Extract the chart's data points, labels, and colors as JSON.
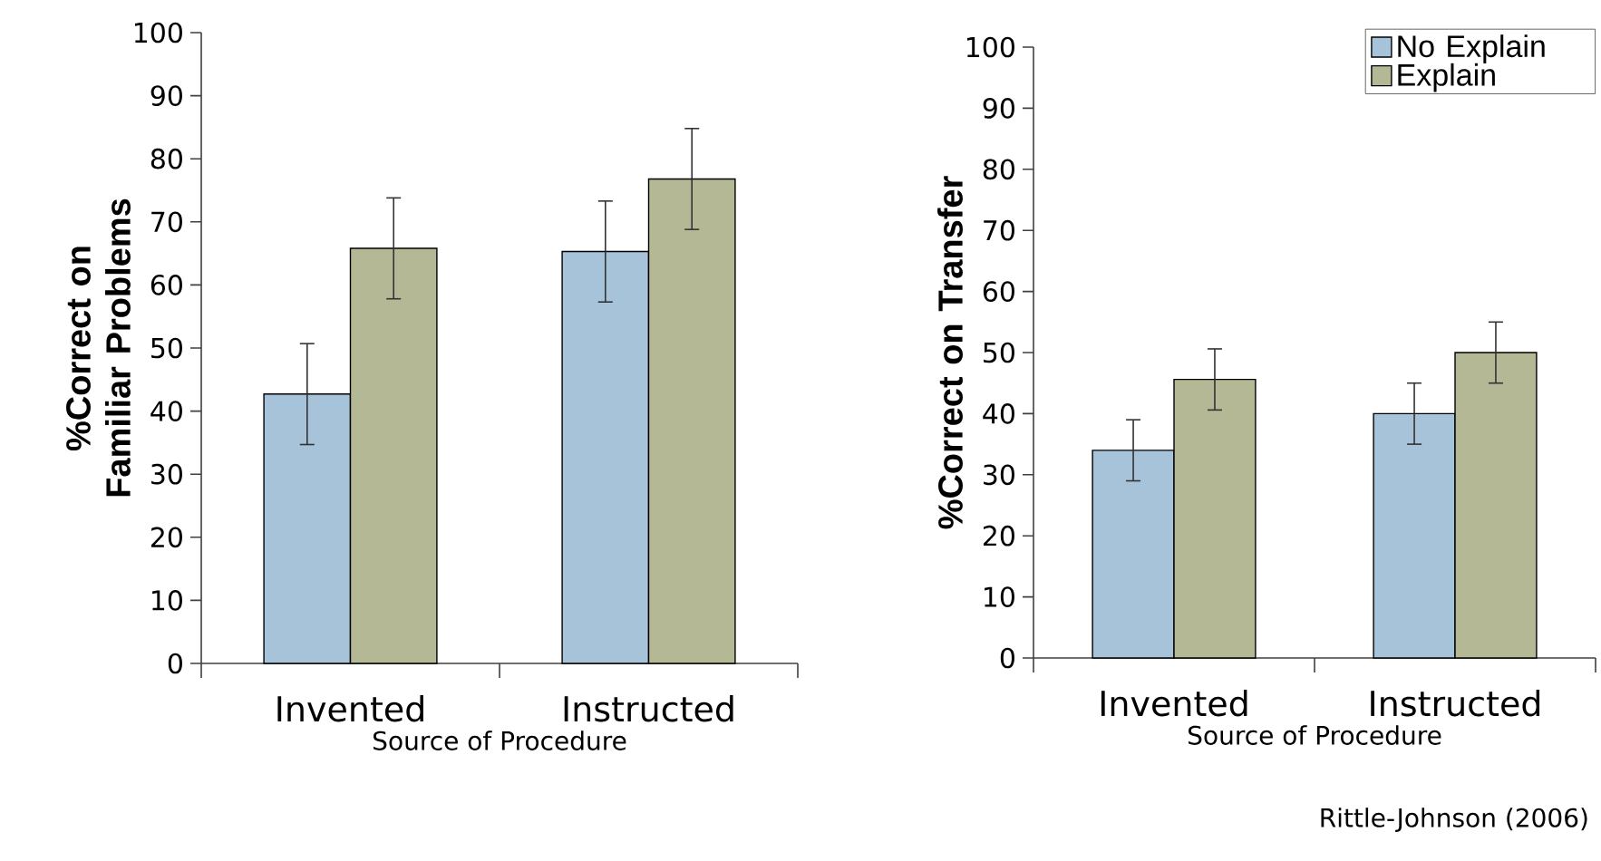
{
  "chart_data": [
    {
      "type": "bar",
      "ylabel": "%Correct on Familiar Problems",
      "xlabel": "Source of Procedure",
      "categories": [
        "Invented",
        "Instructed"
      ],
      "series": [
        {
          "color": "#a6c3da",
          "values": [
            42.7,
            65.3
          ],
          "errors": [
            8,
            8
          ]
        },
        {
          "color": "#b4b894",
          "values": [
            65.8,
            76.8
          ],
          "errors": [
            8,
            8
          ]
        }
      ],
      "ylim": [
        0,
        100
      ],
      "yticks": [
        0,
        10,
        20,
        30,
        40,
        50,
        60,
        70,
        80,
        90,
        100
      ],
      "grid": false,
      "legend": false
    },
    {
      "type": "bar",
      "ylabel": "%Correct on Transfer",
      "xlabel": "Source of Procedure",
      "categories": [
        "Invented",
        "Instructed"
      ],
      "series": [
        {
          "name": "No Explain",
          "color": "#a6c3da",
          "values": [
            34,
            40
          ],
          "errors": [
            5,
            5
          ]
        },
        {
          "name": "Explain",
          "color": "#b4b894",
          "values": [
            45.6,
            50
          ],
          "errors": [
            5,
            5
          ]
        }
      ],
      "ylim": [
        0,
        100
      ],
      "yticks": [
        0,
        10,
        20,
        30,
        40,
        50,
        60,
        70,
        80,
        90,
        100
      ],
      "grid": false,
      "legend": "top right",
      "annotations": [
        "Rittle-Johnson (2006)"
      ]
    }
  ]
}
